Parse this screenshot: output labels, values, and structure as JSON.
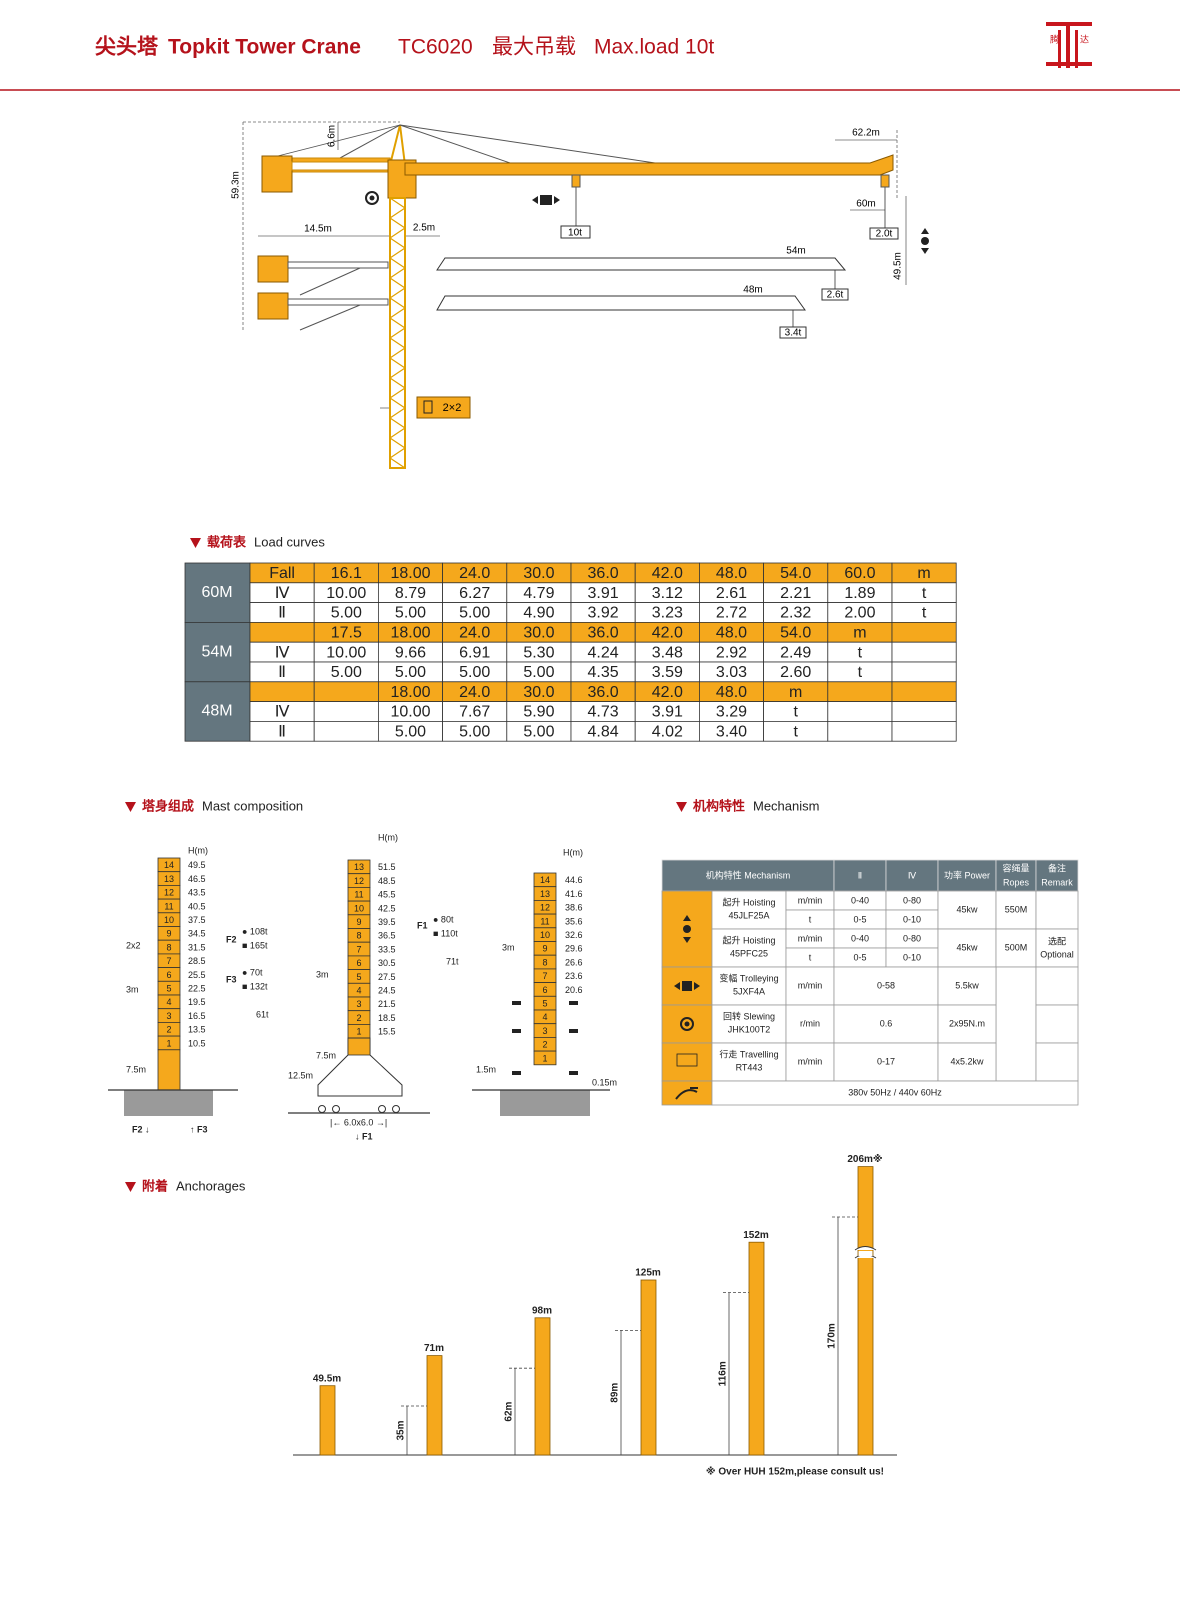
{
  "header": {
    "title_cn": "尖头塔",
    "title_en": "Topkit Tower Crane",
    "model": "TC6020",
    "load_cn": "最大吊载",
    "load_en": "Max.load 10t",
    "logo": [
      "腾",
      "达"
    ]
  },
  "crane": {
    "apex_height": "6.6m",
    "height": "59.3m",
    "jib_max": "62.2m",
    "counter_jib": "14.5m",
    "offset": "2.5m",
    "max_load": "10t",
    "jib_60": "60m",
    "load_60": "2.0t",
    "hook_height": "49.5m",
    "jib_54": "54m",
    "load_54": "2.6t",
    "jib_48": "48m",
    "load_48": "3.4t",
    "mast_section": "2×2"
  },
  "load_curves": {
    "heading_cn": "载荷表",
    "heading_en": "Load curves",
    "groups": [
      {
        "jib": "60M",
        "rows": [
          [
            "Fall",
            "16.1",
            "18.00",
            "24.0",
            "30.0",
            "36.0",
            "42.0",
            "48.0",
            "54.0",
            "60.0",
            "m"
          ],
          [
            "Ⅳ",
            "10.00",
            "8.79",
            "6.27",
            "4.79",
            "3.91",
            "3.12",
            "2.61",
            "2.21",
            "1.89",
            "t"
          ],
          [
            "Ⅱ",
            "5.00",
            "5.00",
            "5.00",
            "4.90",
            "3.92",
            "3.23",
            "2.72",
            "2.32",
            "2.00",
            "t"
          ]
        ]
      },
      {
        "jib": "54M",
        "rows": [
          [
            null,
            "17.5",
            "18.00",
            "24.0",
            "30.0",
            "36.0",
            "42.0",
            "48.0",
            "54.0",
            "m",
            null
          ],
          [
            "Ⅳ",
            "10.00",
            "9.66",
            "6.91",
            "5.30",
            "4.24",
            "3.48",
            "2.92",
            "2.49",
            "t",
            null
          ],
          [
            "Ⅱ",
            "5.00",
            "5.00",
            "5.00",
            "5.00",
            "4.35",
            "3.59",
            "3.03",
            "2.60",
            "t",
            null
          ]
        ]
      },
      {
        "jib": "48M",
        "rows": [
          [
            null,
            null,
            "18.00",
            "24.0",
            "30.0",
            "36.0",
            "42.0",
            "48.0",
            "m",
            null,
            null
          ],
          [
            "Ⅳ",
            null,
            "10.00",
            "7.67",
            "5.90",
            "4.73",
            "3.91",
            "3.29",
            "t",
            null,
            null
          ],
          [
            "Ⅱ",
            null,
            "5.00",
            "5.00",
            "5.00",
            "4.84",
            "4.02",
            "3.40",
            "t",
            null,
            null
          ]
        ]
      }
    ]
  },
  "mast": {
    "heading_cn": "塔身组成",
    "heading_en": "Mast composition",
    "diagrams": [
      {
        "unit": "H(m)",
        "sections": [
          "14",
          "13",
          "12",
          "11",
          "10",
          "9",
          "8",
          "7",
          "6",
          "5",
          "4",
          "3",
          "2",
          "1"
        ],
        "heights": [
          "49.5",
          "46.5",
          "43.5",
          "40.5",
          "37.5",
          "34.5",
          "31.5",
          "28.5",
          "25.5",
          "22.5",
          "19.5",
          "16.5",
          "13.5",
          "10.5"
        ],
        "notes": [
          "2x2",
          "3m",
          "7.5m",
          "F2",
          "● 108t",
          "■ 165t",
          "F3",
          "● 70t",
          "■ 132t",
          "61t",
          "F2 ↓",
          "↑ F3"
        ]
      },
      {
        "unit": "H(m)",
        "sections": [
          "13",
          "12",
          "11",
          "10",
          "9",
          "8",
          "7",
          "6",
          "5",
          "4",
          "3",
          "2",
          "1"
        ],
        "heights": [
          "51.5",
          "48.5",
          "45.5",
          "42.5",
          "39.5",
          "36.5",
          "33.5",
          "30.5",
          "27.5",
          "24.5",
          "21.5",
          "18.5",
          "15.5"
        ],
        "notes": [
          "3m",
          "7.5m",
          "12.5m",
          "F1",
          "● 80t",
          "■ 110t",
          "71t",
          "|← 6.0x6.0 →|",
          "↓ F1"
        ]
      },
      {
        "unit": "H(m)",
        "sections": [
          "14",
          "13",
          "12",
          "11",
          "10",
          "9",
          "8",
          "7",
          "6",
          "5",
          "4",
          "3",
          "2",
          "1"
        ],
        "heights": [
          "44.6",
          "41.6",
          "38.6",
          "35.6",
          "32.6",
          "29.6",
          "26.6",
          "23.6",
          "20.6",
          null,
          null,
          null,
          null,
          null
        ],
        "notes": [
          "3m",
          "1.5m",
          "0.15m"
        ]
      }
    ]
  },
  "mechanism": {
    "heading_cn": "机构特性",
    "heading_en": "Mechanism",
    "header": {
      "mechanism": "机构特性 Mechanism",
      "ii": "Ⅱ",
      "iv": "Ⅳ",
      "power": "功率 Power",
      "ropes_cn": "容绳量",
      "ropes_en": "Ropes",
      "remark_cn": "备注",
      "remark_en": "Remark"
    },
    "hoisting": [
      {
        "name": "起升 Hoisting",
        "model": "45JLF25A",
        "units": [
          "m/min",
          "t"
        ],
        "ii": [
          "0-40",
          "0-5"
        ],
        "iv": [
          "0-80",
          "0-10"
        ],
        "power": "45kw",
        "ropes": "550M"
      },
      {
        "name": "起升 Hoisting",
        "model": "45PFC25",
        "units": [
          "m/min",
          "t"
        ],
        "ii": [
          "0-40",
          "0-5"
        ],
        "iv": [
          "0-80",
          "0-10"
        ],
        "power": "45kw",
        "ropes": "500M",
        "remark_cn": "选配",
        "remark_en": "Optional"
      }
    ],
    "others": [
      {
        "name": "变幅 Trolleying",
        "model": "5JXF4A",
        "unit": "m/min",
        "speed": "0-58",
        "power": "5.5kw"
      },
      {
        "name": "回转 Slewing",
        "model": "JHK100T2",
        "unit": "r/min",
        "speed": "0.6",
        "power": "2x95N.m"
      },
      {
        "name": "行走 Travelling",
        "model": "RT443",
        "unit": "m/min",
        "speed": "0-17",
        "power": "4x5.2kw"
      }
    ],
    "supply": "380v 50Hz / 440v 60Hz"
  },
  "anchorages": {
    "heading_cn": "附着",
    "heading_en": "Anchorages",
    "towers": [
      {
        "label": "49.5m",
        "height": 49.5
      },
      {
        "label": "71m",
        "height": 71,
        "anchor_label": "35m",
        "anchor": 35
      },
      {
        "label": "98m",
        "height": 98,
        "anchor_label": "62m",
        "anchor": 62
      },
      {
        "label": "125m",
        "height": 125,
        "anchor_label": "89m",
        "anchor": 89
      },
      {
        "label": "152m",
        "height": 152,
        "anchor_label": "116m",
        "anchor": 116
      },
      {
        "label": "206m※",
        "height": 206,
        "anchor_label": "170m",
        "anchor": 170
      }
    ],
    "note": "※ Over HUH 152m,please consult us!"
  }
}
